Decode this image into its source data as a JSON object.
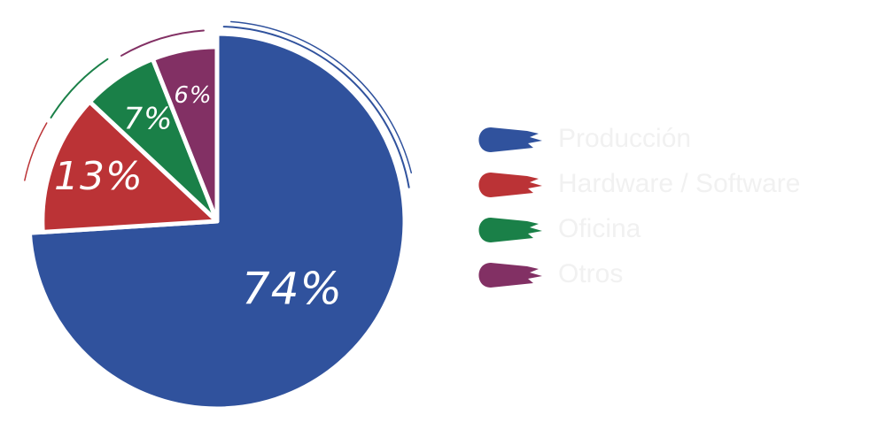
{
  "chart_data": {
    "type": "pie",
    "start_angle_deg": 0,
    "direction": "clockwise",
    "slices": [
      {
        "label": "Producción",
        "value": 74,
        "display": "74%",
        "color": "#30529D"
      },
      {
        "label": "Hardware / Software",
        "value": 13,
        "display": "13%",
        "color": "#BB3336"
      },
      {
        "label": "Oficina",
        "value": 7,
        "display": "7%",
        "color": "#1A8048"
      },
      {
        "label": "Otros",
        "value": 6,
        "display": "6%",
        "color": "#823064"
      }
    ],
    "legend": {
      "position": "right"
    }
  }
}
